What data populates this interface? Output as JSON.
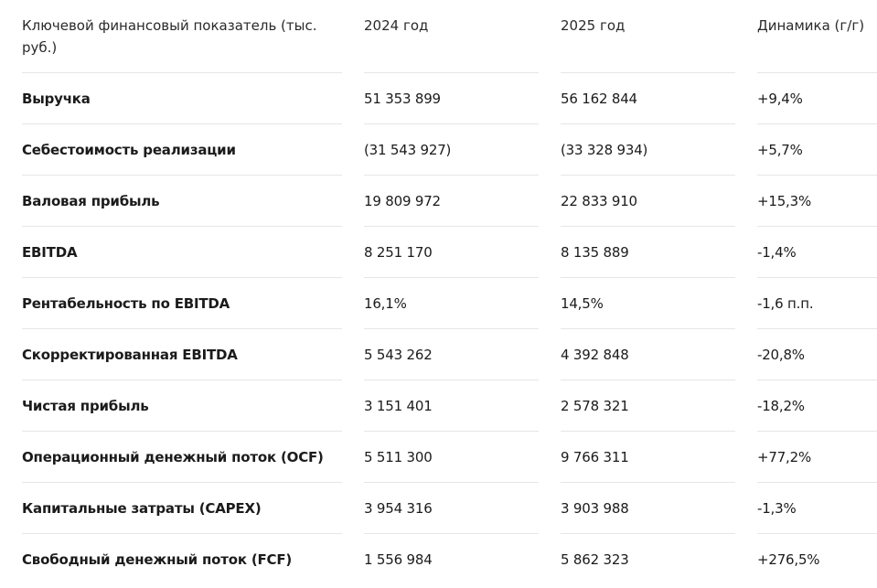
{
  "table": {
    "header": [
      "Ключевой финансовый показатель (тыс. руб.)",
      "2024 год",
      "2025 год",
      "Динамика (г/г)"
    ],
    "rows": [
      [
        "Выручка",
        "51 353 899",
        "56 162 844",
        "+9,4%"
      ],
      [
        "Себестоимость реализации",
        "(31 543 927)",
        "(33 328 934)",
        "+5,7%"
      ],
      [
        "Валовая прибыль",
        "19 809 972",
        "22 833 910",
        "+15,3%"
      ],
      [
        "EBITDA",
        "8 251 170",
        "8 135 889",
        "-1,4%"
      ],
      [
        "Рентабельность по EBITDA",
        "16,1%",
        "14,5%",
        "-1,6 п.п."
      ],
      [
        "Скорректированная EBITDA",
        "5 543 262",
        "4 392 848",
        "-20,8%"
      ],
      [
        "Чистая прибыль",
        "3 151 401",
        "2 578 321",
        "-18,2%"
      ],
      [
        "Операционный денежный поток (OCF)",
        "5 511 300",
        "9 766 311",
        "+77,2%"
      ],
      [
        "Капитальные затраты (CAPEX)",
        "3 954 316",
        "3 903 988",
        "-1,3%"
      ],
      [
        "Свободный денежный поток (FCF)",
        "1 556 984",
        "5 862 323",
        "+276,5%"
      ]
    ]
  }
}
